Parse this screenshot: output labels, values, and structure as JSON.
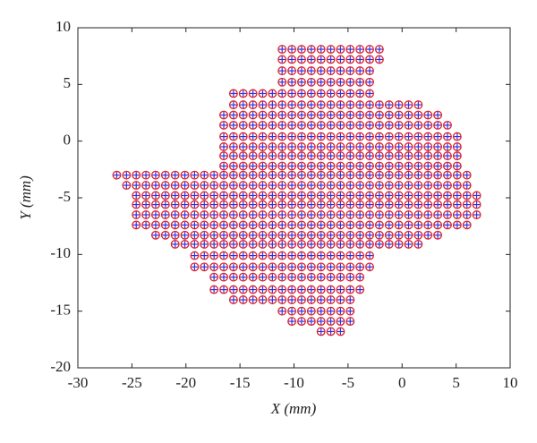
{
  "chart_data": {
    "type": "scatter",
    "x_label": "X (mm)",
    "y_label": "Y (mm)",
    "xlim": [
      -30,
      10
    ],
    "xticks": [
      -30,
      -25,
      -20,
      -15,
      -10,
      -5,
      0,
      5,
      10
    ],
    "ylim": [
      -20,
      10
    ],
    "yticks": [
      -20,
      -15,
      -10,
      -5,
      0,
      5,
      10
    ],
    "markers": [
      {
        "shape": "circle",
        "color": "#e0202a"
      },
      {
        "shape": "plus",
        "color": "#3030e0"
      }
    ],
    "x": [
      -11.1,
      -10.2,
      -9.3,
      -8.4,
      -7.5,
      -6.6,
      -5.7,
      -4.8,
      -3.9,
      -3.0,
      -2.1,
      -11.1,
      -10.2,
      -9.3,
      -8.4,
      -7.5,
      -6.6,
      -5.7,
      -4.8,
      -3.9,
      -3.0,
      -2.1,
      -11.1,
      -10.2,
      -9.3,
      -8.4,
      -7.5,
      -6.6,
      -5.7,
      -4.8,
      -3.9,
      -3.0,
      -11.1,
      -10.2,
      -9.3,
      -8.4,
      -7.5,
      -6.6,
      -5.7,
      -4.8,
      -3.9,
      -3.0,
      -15.6,
      -14.7,
      -13.8,
      -12.9,
      -12.0,
      -11.1,
      -10.2,
      -9.3,
      -8.4,
      -7.5,
      -6.6,
      -5.7,
      -4.8,
      -3.9,
      -3.0,
      -15.6,
      -14.7,
      -13.8,
      -12.9,
      -12.0,
      -11.1,
      -10.2,
      -9.3,
      -8.4,
      -7.5,
      -6.6,
      -5.7,
      -4.8,
      -3.9,
      -3.0,
      -2.1,
      -1.2,
      -0.3,
      0.6,
      1.5,
      -16.5,
      -15.6,
      -14.7,
      -13.8,
      -12.9,
      -12.0,
      -11.1,
      -10.2,
      -9.3,
      -8.4,
      -7.5,
      -6.6,
      -5.7,
      -4.8,
      -3.9,
      -3.0,
      -2.1,
      -1.2,
      -0.3,
      0.6,
      1.5,
      2.4,
      3.3,
      -16.5,
      -15.6,
      -14.7,
      -13.8,
      -12.9,
      -12.0,
      -11.1,
      -10.2,
      -9.3,
      -8.4,
      -7.5,
      -6.6,
      -5.7,
      -4.8,
      -3.9,
      -3.0,
      -2.1,
      -1.2,
      -0.3,
      0.6,
      1.5,
      2.4,
      3.3,
      4.2,
      -16.5,
      -15.6,
      -14.7,
      -13.8,
      -12.9,
      -12.0,
      -11.1,
      -10.2,
      -9.3,
      -8.4,
      -7.5,
      -6.6,
      -5.7,
      -4.8,
      -3.9,
      -3.0,
      -2.1,
      -1.2,
      -0.3,
      0.6,
      1.5,
      2.4,
      3.3,
      4.2,
      5.1,
      -16.5,
      -15.6,
      -14.7,
      -13.8,
      -12.9,
      -12.0,
      -11.1,
      -10.2,
      -9.3,
      -8.4,
      -7.5,
      -6.6,
      -5.7,
      -4.8,
      -3.9,
      -3.0,
      -2.1,
      -1.2,
      -0.3,
      0.6,
      1.5,
      2.4,
      3.3,
      4.2,
      5.1,
      -16.5,
      -15.6,
      -14.7,
      -13.8,
      -12.9,
      -12.0,
      -11.1,
      -10.2,
      -9.3,
      -8.4,
      -7.5,
      -6.6,
      -5.7,
      -4.8,
      -3.9,
      -3.0,
      -2.1,
      -1.2,
      -0.3,
      0.6,
      1.5,
      2.4,
      3.3,
      4.2,
      5.1,
      -16.5,
      -15.6,
      -14.7,
      -13.8,
      -12.9,
      -12.0,
      -11.1,
      -10.2,
      -9.3,
      -8.4,
      -7.5,
      -6.6,
      -5.7,
      -4.8,
      -3.9,
      -3.0,
      -2.1,
      -1.2,
      -0.3,
      0.6,
      1.5,
      2.4,
      3.3,
      4.2,
      5.1,
      -26.4,
      -25.5,
      -24.6,
      -23.7,
      -22.8,
      -21.9,
      -21.0,
      -20.1,
      -19.2,
      -18.3,
      -17.4,
      -16.5,
      -15.6,
      -14.7,
      -13.8,
      -12.9,
      -12.0,
      -11.1,
      -10.2,
      -9.3,
      -8.4,
      -7.5,
      -6.6,
      -5.7,
      -4.8,
      -3.9,
      -3.0,
      -2.1,
      -1.2,
      -0.3,
      0.6,
      1.5,
      2.4,
      3.3,
      4.2,
      5.1,
      6.0,
      -25.5,
      -24.6,
      -23.7,
      -22.8,
      -21.9,
      -21.0,
      -20.1,
      -19.2,
      -18.3,
      -17.4,
      -16.5,
      -15.6,
      -14.7,
      -13.8,
      -12.9,
      -12.0,
      -11.1,
      -10.2,
      -9.3,
      -8.4,
      -7.5,
      -6.6,
      -5.7,
      -4.8,
      -3.9,
      -3.0,
      -2.1,
      -1.2,
      -0.3,
      0.6,
      1.5,
      2.4,
      3.3,
      4.2,
      5.1,
      6.0,
      -24.6,
      -23.7,
      -22.8,
      -21.9,
      -21.0,
      -20.1,
      -19.2,
      -18.3,
      -17.4,
      -16.5,
      -15.6,
      -14.7,
      -13.8,
      -12.9,
      -12.0,
      -11.1,
      -10.2,
      -9.3,
      -8.4,
      -7.5,
      -6.6,
      -5.7,
      -4.8,
      -3.9,
      -3.0,
      -2.1,
      -1.2,
      -0.3,
      0.6,
      1.5,
      2.4,
      3.3,
      4.2,
      5.1,
      6.0,
      6.9,
      -24.6,
      -23.7,
      -22.8,
      -21.9,
      -21.0,
      -20.1,
      -19.2,
      -18.3,
      -17.4,
      -16.5,
      -15.6,
      -14.7,
      -13.8,
      -12.9,
      -12.0,
      -11.1,
      -10.2,
      -9.3,
      -8.4,
      -7.5,
      -6.6,
      -5.7,
      -4.8,
      -3.9,
      -3.0,
      -2.1,
      -1.2,
      -0.3,
      0.6,
      1.5,
      2.4,
      3.3,
      4.2,
      5.1,
      6.0,
      6.9,
      -24.6,
      -23.7,
      -22.8,
      -21.9,
      -21.0,
      -20.1,
      -19.2,
      -18.3,
      -17.4,
      -16.5,
      -15.6,
      -14.7,
      -13.8,
      -12.9,
      -12.0,
      -11.1,
      -10.2,
      -9.3,
      -8.4,
      -7.5,
      -6.6,
      -5.7,
      -4.8,
      -3.9,
      -3.0,
      -2.1,
      -1.2,
      -0.3,
      0.6,
      1.5,
      2.4,
      3.3,
      4.2,
      5.1,
      6.0,
      6.9,
      -24.6,
      -23.7,
      -22.8,
      -21.9,
      -21.0,
      -20.1,
      -19.2,
      -18.3,
      -17.4,
      -16.5,
      -15.6,
      -14.7,
      -13.8,
      -12.9,
      -12.0,
      -11.1,
      -10.2,
      -9.3,
      -8.4,
      -7.5,
      -6.6,
      -5.7,
      -4.8,
      -3.9,
      -3.0,
      -2.1,
      -1.2,
      -0.3,
      0.6,
      1.5,
      2.4,
      3.3,
      4.2,
      5.1,
      6.0,
      -22.8,
      -21.9,
      -21.0,
      -20.1,
      -19.2,
      -18.3,
      -17.4,
      -16.5,
      -15.6,
      -14.7,
      -13.8,
      -12.9,
      -12.0,
      -11.1,
      -10.2,
      -9.3,
      -8.4,
      -7.5,
      -6.6,
      -5.7,
      -4.8,
      -3.9,
      -3.0,
      -2.1,
      -1.2,
      -0.3,
      0.6,
      1.5,
      2.4,
      3.3,
      -21.0,
      -20.1,
      -19.2,
      -18.3,
      -17.4,
      -16.5,
      -15.6,
      -14.7,
      -13.8,
      -12.9,
      -12.0,
      -11.1,
      -10.2,
      -9.3,
      -8.4,
      -7.5,
      -6.6,
      -5.7,
      -4.8,
      -3.9,
      -3.0,
      -2.1,
      -1.2,
      -0.3,
      0.6,
      1.5,
      -19.2,
      -18.3,
      -17.4,
      -16.5,
      -15.6,
      -14.7,
      -13.8,
      -12.9,
      -12.0,
      -11.1,
      -10.2,
      -9.3,
      -8.4,
      -7.5,
      -6.6,
      -5.7,
      -4.8,
      -3.9,
      -3.0,
      -19.2,
      -18.3,
      -17.4,
      -16.5,
      -15.6,
      -14.7,
      -13.8,
      -12.9,
      -12.0,
      -11.1,
      -10.2,
      -9.3,
      -8.4,
      -7.5,
      -6.6,
      -5.7,
      -4.8,
      -3.9,
      -3.0,
      -17.4,
      -16.5,
      -15.6,
      -14.7,
      -13.8,
      -12.9,
      -12.0,
      -11.1,
      -10.2,
      -9.3,
      -8.4,
      -7.5,
      -6.6,
      -5.7,
      -4.8,
      -3.9,
      -17.4,
      -16.5,
      -15.6,
      -14.7,
      -13.8,
      -12.9,
      -12.0,
      -11.1,
      -10.2,
      -9.3,
      -8.4,
      -7.5,
      -6.6,
      -5.7,
      -4.8,
      -3.9,
      -15.6,
      -14.7,
      -13.8,
      -12.9,
      -12.0,
      -11.1,
      -10.2,
      -9.3,
      -8.4,
      -7.5,
      -6.6,
      -5.7,
      -4.8,
      -11.1,
      -10.2,
      -9.3,
      -8.4,
      -7.5,
      -6.6,
      -5.7,
      -4.8,
      -10.2,
      -9.3,
      -8.4,
      -7.5,
      -6.6,
      -5.7,
      -4.8,
      -7.5,
      -6.6,
      -5.7
    ],
    "y": [
      8.1,
      8.1,
      8.1,
      8.1,
      8.1,
      8.1,
      8.1,
      8.1,
      8.1,
      8.1,
      8.1,
      7.2,
      7.2,
      7.2,
      7.2,
      7.2,
      7.2,
      7.2,
      7.2,
      7.2,
      7.2,
      7.2,
      6.2,
      6.2,
      6.2,
      6.2,
      6.2,
      6.2,
      6.2,
      6.2,
      6.2,
      6.2,
      5.2,
      5.2,
      5.2,
      5.2,
      5.2,
      5.2,
      5.2,
      5.2,
      5.2,
      5.2,
      4.2,
      4.2,
      4.2,
      4.2,
      4.2,
      4.2,
      4.2,
      4.2,
      4.2,
      4.2,
      4.2,
      4.2,
      4.2,
      4.2,
      4.2,
      3.2,
      3.2,
      3.2,
      3.2,
      3.2,
      3.2,
      3.2,
      3.2,
      3.2,
      3.2,
      3.2,
      3.2,
      3.2,
      3.2,
      3.2,
      3.2,
      3.2,
      3.2,
      3.2,
      3.2,
      2.3,
      2.3,
      2.3,
      2.3,
      2.3,
      2.3,
      2.3,
      2.3,
      2.3,
      2.3,
      2.3,
      2.3,
      2.3,
      2.3,
      2.3,
      2.3,
      2.3,
      2.3,
      2.3,
      2.3,
      2.3,
      2.3,
      2.3,
      1.4,
      1.4,
      1.4,
      1.4,
      1.4,
      1.4,
      1.4,
      1.4,
      1.4,
      1.4,
      1.4,
      1.4,
      1.4,
      1.4,
      1.4,
      1.4,
      1.4,
      1.4,
      1.4,
      1.4,
      1.4,
      1.4,
      1.4,
      1.4,
      0.4,
      0.4,
      0.4,
      0.4,
      0.4,
      0.4,
      0.4,
      0.4,
      0.4,
      0.4,
      0.4,
      0.4,
      0.4,
      0.4,
      0.4,
      0.4,
      0.4,
      0.4,
      0.4,
      0.4,
      0.4,
      0.4,
      0.4,
      0.4,
      0.4,
      -0.5,
      -0.5,
      -0.5,
      -0.5,
      -0.5,
      -0.5,
      -0.5,
      -0.5,
      -0.5,
      -0.5,
      -0.5,
      -0.5,
      -0.5,
      -0.5,
      -0.5,
      -0.5,
      -0.5,
      -0.5,
      -0.5,
      -0.5,
      -0.5,
      -0.5,
      -0.5,
      -0.5,
      -0.5,
      -1.3,
      -1.3,
      -1.3,
      -1.3,
      -1.3,
      -1.3,
      -1.3,
      -1.3,
      -1.3,
      -1.3,
      -1.3,
      -1.3,
      -1.3,
      -1.3,
      -1.3,
      -1.3,
      -1.3,
      -1.3,
      -1.3,
      -1.3,
      -1.3,
      -1.3,
      -1.3,
      -1.3,
      -1.3,
      -2.2,
      -2.2,
      -2.2,
      -2.2,
      -2.2,
      -2.2,
      -2.2,
      -2.2,
      -2.2,
      -2.2,
      -2.2,
      -2.2,
      -2.2,
      -2.2,
      -2.2,
      -2.2,
      -2.2,
      -2.2,
      -2.2,
      -2.2,
      -2.2,
      -2.2,
      -2.2,
      -2.2,
      -2.2,
      -3.0,
      -3.0,
      -3.0,
      -3.0,
      -3.0,
      -3.0,
      -3.0,
      -3.0,
      -3.0,
      -3.0,
      -3.0,
      -3.0,
      -3.0,
      -3.0,
      -3.0,
      -3.0,
      -3.0,
      -3.0,
      -3.0,
      -3.0,
      -3.0,
      -3.0,
      -3.0,
      -3.0,
      -3.0,
      -3.0,
      -3.0,
      -3.0,
      -3.0,
      -3.0,
      -3.0,
      -3.0,
      -3.0,
      -3.0,
      -3.0,
      -3.0,
      -3.0,
      -3.9,
      -3.9,
      -3.9,
      -3.9,
      -3.9,
      -3.9,
      -3.9,
      -3.9,
      -3.9,
      -3.9,
      -3.9,
      -3.9,
      -3.9,
      -3.9,
      -3.9,
      -3.9,
      -3.9,
      -3.9,
      -3.9,
      -3.9,
      -3.9,
      -3.9,
      -3.9,
      -3.9,
      -3.9,
      -3.9,
      -3.9,
      -3.9,
      -3.9,
      -3.9,
      -3.9,
      -3.9,
      -3.9,
      -3.9,
      -3.9,
      -3.9,
      -4.8,
      -4.8,
      -4.8,
      -4.8,
      -4.8,
      -4.8,
      -4.8,
      -4.8,
      -4.8,
      -4.8,
      -4.8,
      -4.8,
      -4.8,
      -4.8,
      -4.8,
      -4.8,
      -4.8,
      -4.8,
      -4.8,
      -4.8,
      -4.8,
      -4.8,
      -4.8,
      -4.8,
      -4.8,
      -4.8,
      -4.8,
      -4.8,
      -4.8,
      -4.8,
      -4.8,
      -4.8,
      -4.8,
      -4.8,
      -4.8,
      -4.8,
      -5.6,
      -5.6,
      -5.6,
      -5.6,
      -5.6,
      -5.6,
      -5.6,
      -5.6,
      -5.6,
      -5.6,
      -5.6,
      -5.6,
      -5.6,
      -5.6,
      -5.6,
      -5.6,
      -5.6,
      -5.6,
      -5.6,
      -5.6,
      -5.6,
      -5.6,
      -5.6,
      -5.6,
      -5.6,
      -5.6,
      -5.6,
      -5.6,
      -5.6,
      -5.6,
      -5.6,
      -5.6,
      -5.6,
      -5.6,
      -5.6,
      -5.6,
      -6.5,
      -6.5,
      -6.5,
      -6.5,
      -6.5,
      -6.5,
      -6.5,
      -6.5,
      -6.5,
      -6.5,
      -6.5,
      -6.5,
      -6.5,
      -6.5,
      -6.5,
      -6.5,
      -6.5,
      -6.5,
      -6.5,
      -6.5,
      -6.5,
      -6.5,
      -6.5,
      -6.5,
      -6.5,
      -6.5,
      -6.5,
      -6.5,
      -6.5,
      -6.5,
      -6.5,
      -6.5,
      -6.5,
      -6.5,
      -6.5,
      -6.5,
      -7.4,
      -7.4,
      -7.4,
      -7.4,
      -7.4,
      -7.4,
      -7.4,
      -7.4,
      -7.4,
      -7.4,
      -7.4,
      -7.4,
      -7.4,
      -7.4,
      -7.4,
      -7.4,
      -7.4,
      -7.4,
      -7.4,
      -7.4,
      -7.4,
      -7.4,
      -7.4,
      -7.4,
      -7.4,
      -7.4,
      -7.4,
      -7.4,
      -7.4,
      -7.4,
      -7.4,
      -7.4,
      -7.4,
      -7.4,
      -7.4,
      -8.3,
      -8.3,
      -8.3,
      -8.3,
      -8.3,
      -8.3,
      -8.3,
      -8.3,
      -8.3,
      -8.3,
      -8.3,
      -8.3,
      -8.3,
      -8.3,
      -8.3,
      -8.3,
      -8.3,
      -8.3,
      -8.3,
      -8.3,
      -8.3,
      -8.3,
      -8.3,
      -8.3,
      -8.3,
      -8.3,
      -8.3,
      -8.3,
      -8.3,
      -8.3,
      -9.1,
      -9.1,
      -9.1,
      -9.1,
      -9.1,
      -9.1,
      -9.1,
      -9.1,
      -9.1,
      -9.1,
      -9.1,
      -9.1,
      -9.1,
      -9.1,
      -9.1,
      -9.1,
      -9.1,
      -9.1,
      -9.1,
      -9.1,
      -9.1,
      -9.1,
      -9.1,
      -9.1,
      -9.1,
      -9.1,
      -10.1,
      -10.1,
      -10.1,
      -10.1,
      -10.1,
      -10.1,
      -10.1,
      -10.1,
      -10.1,
      -10.1,
      -10.1,
      -10.1,
      -10.1,
      -10.1,
      -10.1,
      -10.1,
      -10.1,
      -10.1,
      -10.1,
      -11.1,
      -11.1,
      -11.1,
      -11.1,
      -11.1,
      -11.1,
      -11.1,
      -11.1,
      -11.1,
      -11.1,
      -11.1,
      -11.1,
      -11.1,
      -11.1,
      -11.1,
      -11.1,
      -11.1,
      -11.1,
      -11.1,
      -12.0,
      -12.0,
      -12.0,
      -12.0,
      -12.0,
      -12.0,
      -12.0,
      -12.0,
      -12.0,
      -12.0,
      -12.0,
      -12.0,
      -12.0,
      -12.0,
      -12.0,
      -12.0,
      -13.1,
      -13.1,
      -13.1,
      -13.1,
      -13.1,
      -13.1,
      -13.1,
      -13.1,
      -13.1,
      -13.1,
      -13.1,
      -13.1,
      -13.1,
      -13.1,
      -13.1,
      -13.1,
      -14.0,
      -14.0,
      -14.0,
      -14.0,
      -14.0,
      -14.0,
      -14.0,
      -14.0,
      -14.0,
      -14.0,
      -14.0,
      -14.0,
      -14.0,
      -15.0,
      -15.0,
      -15.0,
      -15.0,
      -15.0,
      -15.0,
      -15.0,
      -15.0,
      -15.9,
      -15.9,
      -15.9,
      -15.9,
      -15.9,
      -15.9,
      -15.9,
      -16.8,
      -16.8,
      -16.8
    ]
  }
}
